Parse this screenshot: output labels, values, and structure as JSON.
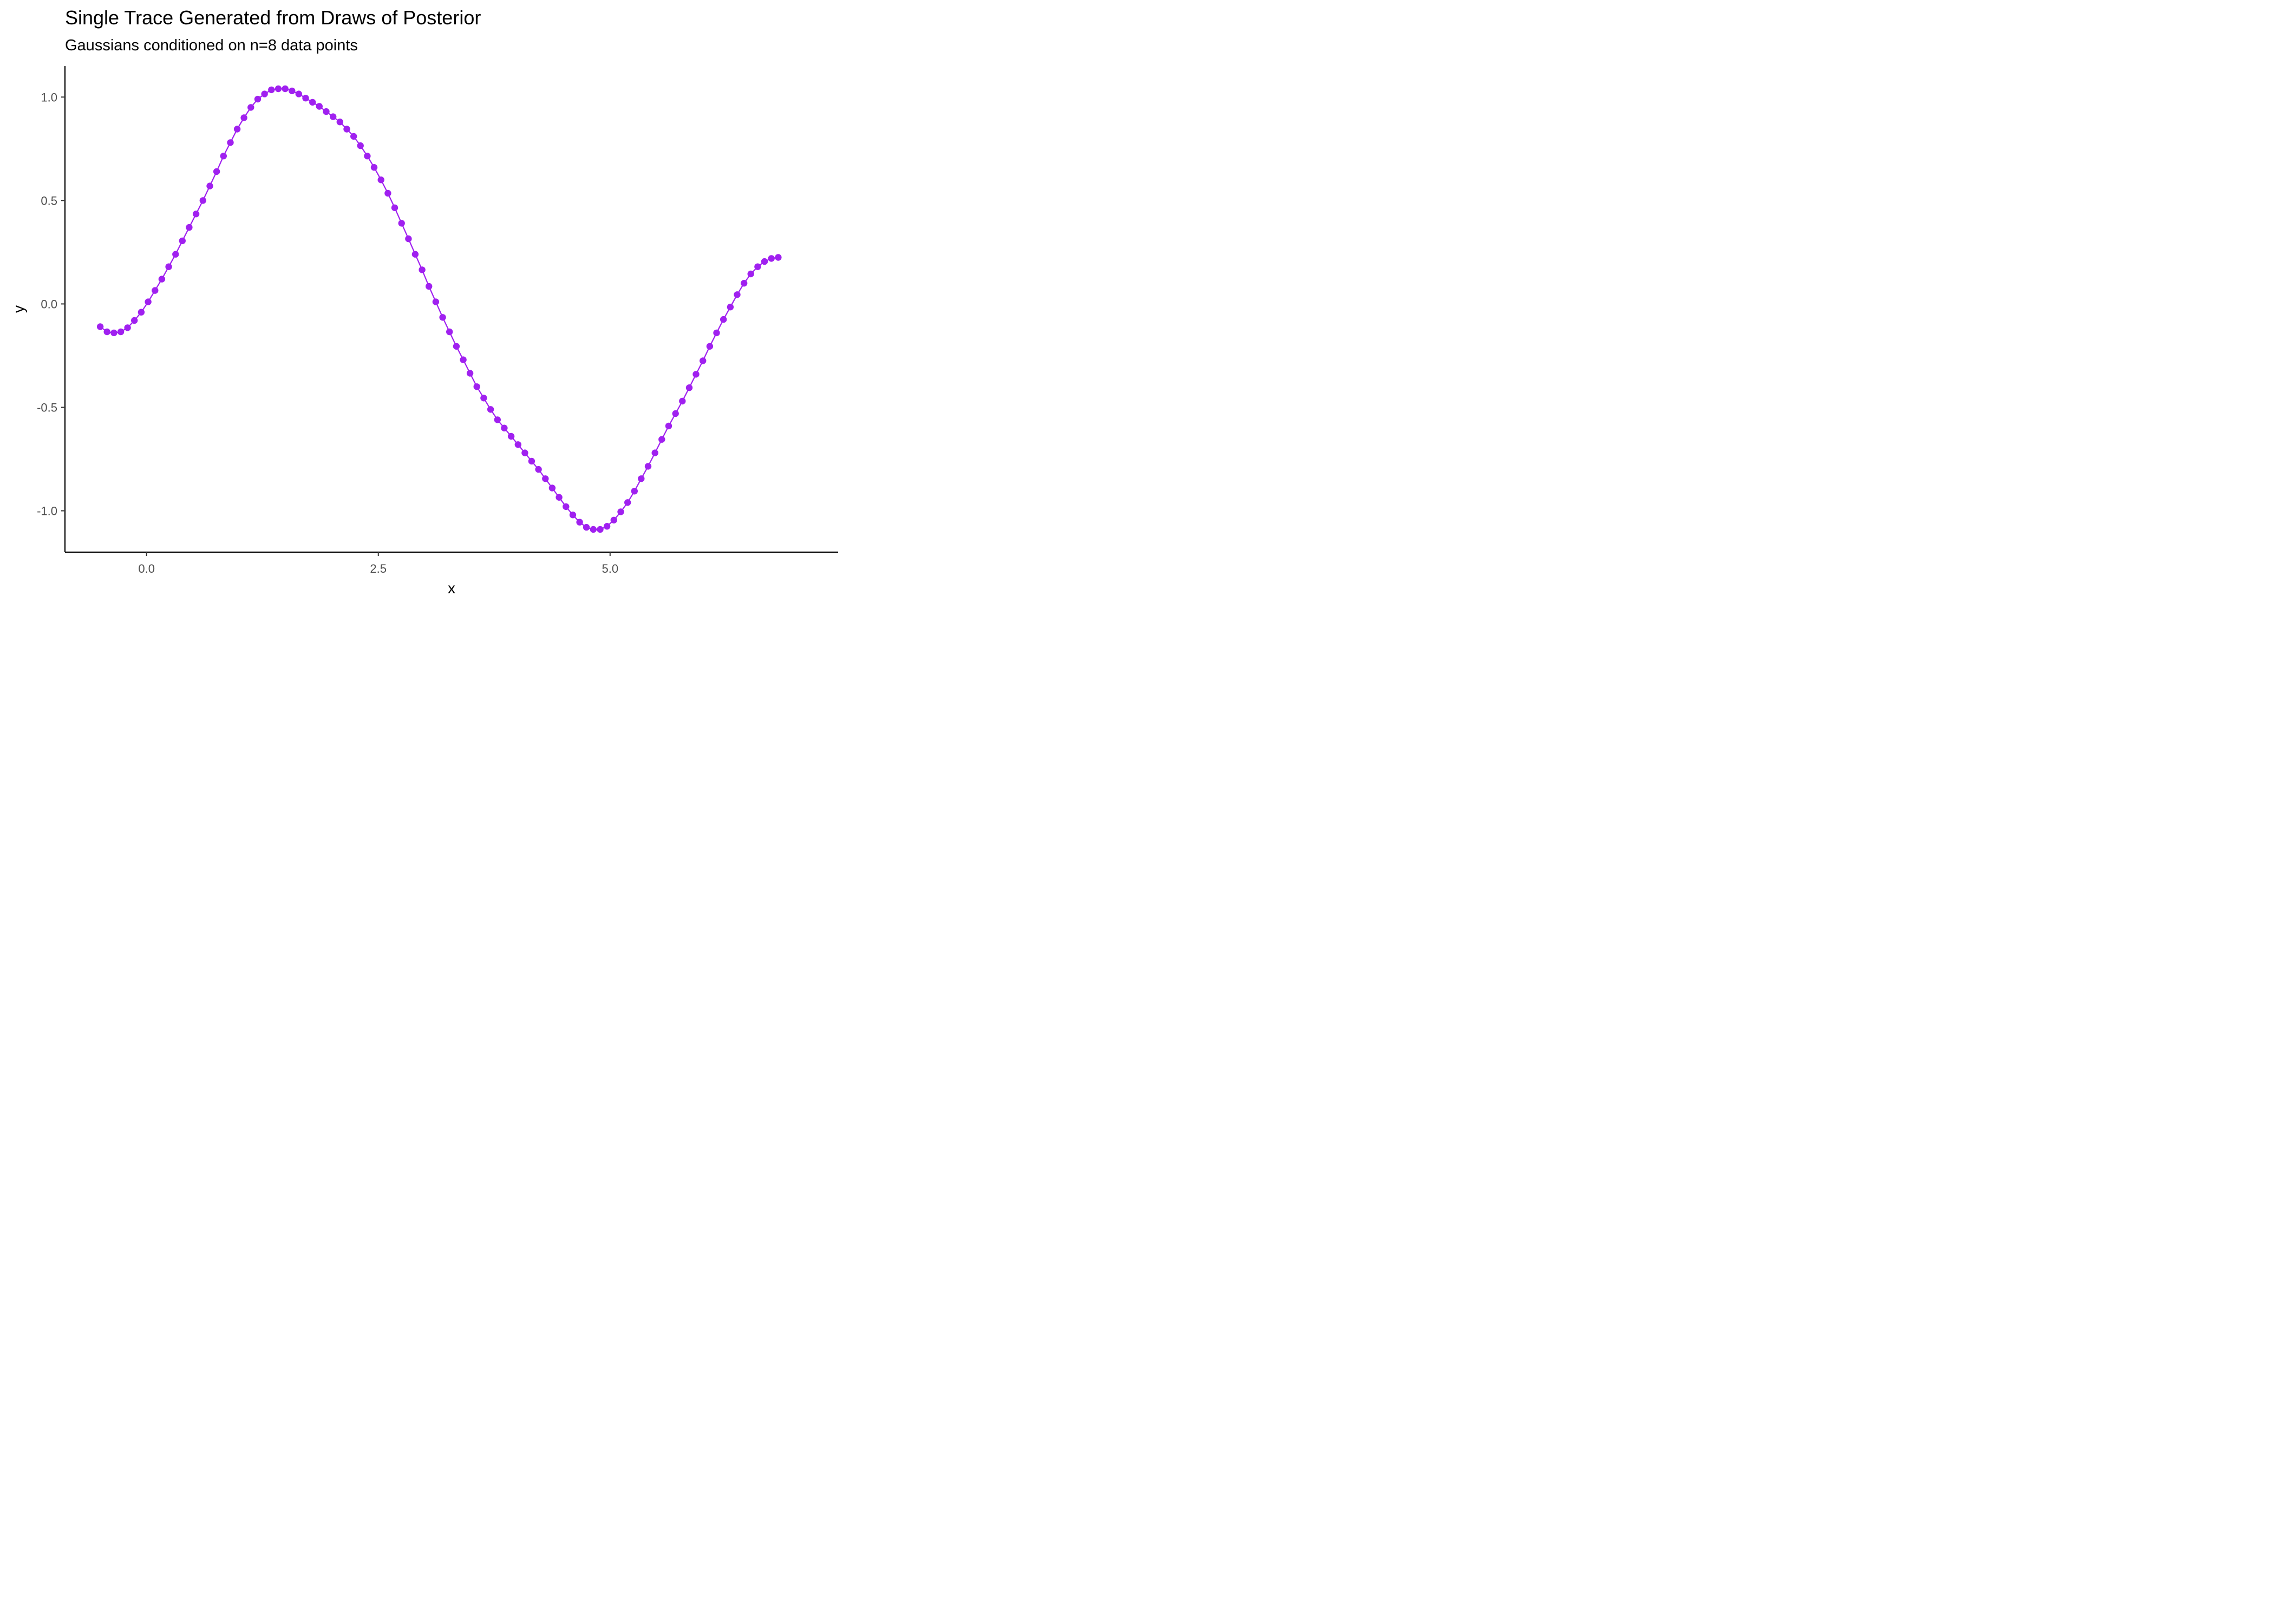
{
  "chart_data": {
    "type": "line",
    "title": "Single Trace Generated from Draws of Posterior",
    "subtitle": "Gaussians conditioned on n=8 data points",
    "xlabel": "x",
    "ylabel": "y",
    "xlim": [
      -0.88,
      7.46
    ],
    "ylim": [
      -1.2,
      1.15
    ],
    "x_ticks": [
      {
        "value": 0.0,
        "label": "0.0"
      },
      {
        "value": 2.5,
        "label": "2.5"
      },
      {
        "value": 5.0,
        "label": "5.0"
      }
    ],
    "y_ticks": [
      {
        "value": 1.0,
        "label": "1.0"
      },
      {
        "value": 0.5,
        "label": "0.5"
      },
      {
        "value": 0.0,
        "label": "0.0"
      },
      {
        "value": -0.5,
        "label": "-0.5"
      },
      {
        "value": -1.0,
        "label": "-1.0"
      }
    ],
    "grid": false,
    "legend": "none",
    "color": "#A020F0",
    "series": [
      {
        "x": [
          -0.5,
          -0.426,
          -0.352,
          -0.278,
          -0.205,
          -0.131,
          -0.057,
          0.017,
          0.091,
          0.165,
          0.239,
          0.313,
          0.386,
          0.46,
          0.534,
          0.608,
          0.682,
          0.756,
          0.83,
          0.904,
          0.978,
          1.051,
          1.125,
          1.199,
          1.273,
          1.347,
          1.421,
          1.495,
          1.569,
          1.642,
          1.716,
          1.79,
          1.864,
          1.938,
          2.012,
          2.086,
          2.16,
          2.234,
          2.307,
          2.381,
          2.455,
          2.529,
          2.603,
          2.677,
          2.751,
          2.825,
          2.898,
          2.972,
          3.046,
          3.12,
          3.194,
          3.268,
          3.342,
          3.416,
          3.489,
          3.563,
          3.637,
          3.711,
          3.785,
          3.859,
          3.933,
          4.007,
          4.081,
          4.154,
          4.228,
          4.302,
          4.376,
          4.45,
          4.524,
          4.598,
          4.672,
          4.745,
          4.819,
          4.893,
          4.967,
          5.041,
          5.115,
          5.189,
          5.263,
          5.336,
          5.41,
          5.484,
          5.558,
          5.632,
          5.706,
          5.78,
          5.854,
          5.927,
          6.001,
          6.075,
          6.149,
          6.223,
          6.297,
          6.371,
          6.445,
          6.518,
          6.592,
          6.666,
          6.74,
          6.814
        ],
        "y": [
          -0.11,
          -0.135,
          -0.14,
          -0.135,
          -0.115,
          -0.08,
          -0.04,
          0.01,
          0.065,
          0.12,
          0.18,
          0.24,
          0.305,
          0.37,
          0.435,
          0.5,
          0.57,
          0.64,
          0.715,
          0.78,
          0.845,
          0.9,
          0.95,
          0.99,
          1.015,
          1.035,
          1.04,
          1.04,
          1.03,
          1.015,
          0.995,
          0.975,
          0.955,
          0.93,
          0.905,
          0.88,
          0.845,
          0.81,
          0.765,
          0.715,
          0.66,
          0.6,
          0.535,
          0.465,
          0.39,
          0.315,
          0.24,
          0.165,
          0.085,
          0.01,
          -0.065,
          -0.135,
          -0.205,
          -0.27,
          -0.335,
          -0.4,
          -0.455,
          -0.51,
          -0.56,
          -0.6,
          -0.64,
          -0.68,
          -0.72,
          -0.76,
          -0.8,
          -0.845,
          -0.89,
          -0.935,
          -0.98,
          -1.02,
          -1.055,
          -1.08,
          -1.09,
          -1.09,
          -1.075,
          -1.045,
          -1.005,
          -0.96,
          -0.905,
          -0.845,
          -0.785,
          -0.72,
          -0.655,
          -0.59,
          -0.53,
          -0.47,
          -0.405,
          -0.34,
          -0.275,
          -0.205,
          -0.14,
          -0.075,
          -0.015,
          0.045,
          0.1,
          0.145,
          0.18,
          0.205,
          0.22,
          0.225
        ]
      }
    ]
  }
}
